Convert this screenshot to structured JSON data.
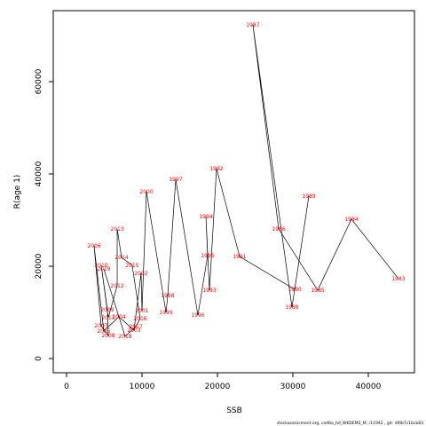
{
  "chart_data": {
    "type": "line",
    "xlabel": "SSB",
    "ylabel": "R(age 1)",
    "footer": "stockassessment.org, cod6a_hd_WKDEM2_M, r11942 , git: df0b7c1bcb83",
    "labels": [
      "1983",
      "1984",
      "1985",
      "1986",
      "1987",
      "1988",
      "1989",
      "1990",
      "1991",
      "1992",
      "1993",
      "1994",
      "1995",
      "1996",
      "1997",
      "1998",
      "1999",
      "2000",
      "2001",
      "2002",
      "2003",
      "2004",
      "2005",
      "2006",
      "2007",
      "2008",
      "2009",
      "2010",
      "2011",
      "2012",
      "2013",
      "2014",
      "2015",
      "2016",
      "2017",
      "2018",
      "2019"
    ],
    "x": [
      44000,
      37760,
      33290,
      28120,
      24700,
      29880,
      32120,
      30240,
      22940,
      19880,
      18940,
      18470,
      18700,
      17410,
      14470,
      13410,
      13180,
      10590,
      10000,
      9880,
      8940,
      6940,
      4940,
      3650,
      4590,
      5530,
      5410,
      4590,
      5530,
      6710,
      6710,
      7290,
      8700,
      9760,
      9180,
      7760,
      4940
    ],
    "values": [
      17300,
      30200,
      14800,
      28100,
      72300,
      11150,
      35200,
      15000,
      22100,
      41150,
      14800,
      30800,
      22300,
      9400,
      38800,
      13650,
      10000,
      36150,
      10400,
      18460,
      6150,
      9040,
      5960,
      24400,
      7100,
      5000,
      10600,
      20200,
      8850,
      15800,
      28100,
      21900,
      20200,
      8650,
      6900,
      4800,
      19400
    ],
    "color": "#000000",
    "label_color": "#ff0000",
    "xlim": [
      -1765,
      46118
    ],
    "ylim": [
      -3077,
      75385
    ],
    "xticks": [
      0,
      10000,
      20000,
      30000,
      40000
    ],
    "yticks": [
      0,
      20000,
      40000,
      60000
    ]
  }
}
